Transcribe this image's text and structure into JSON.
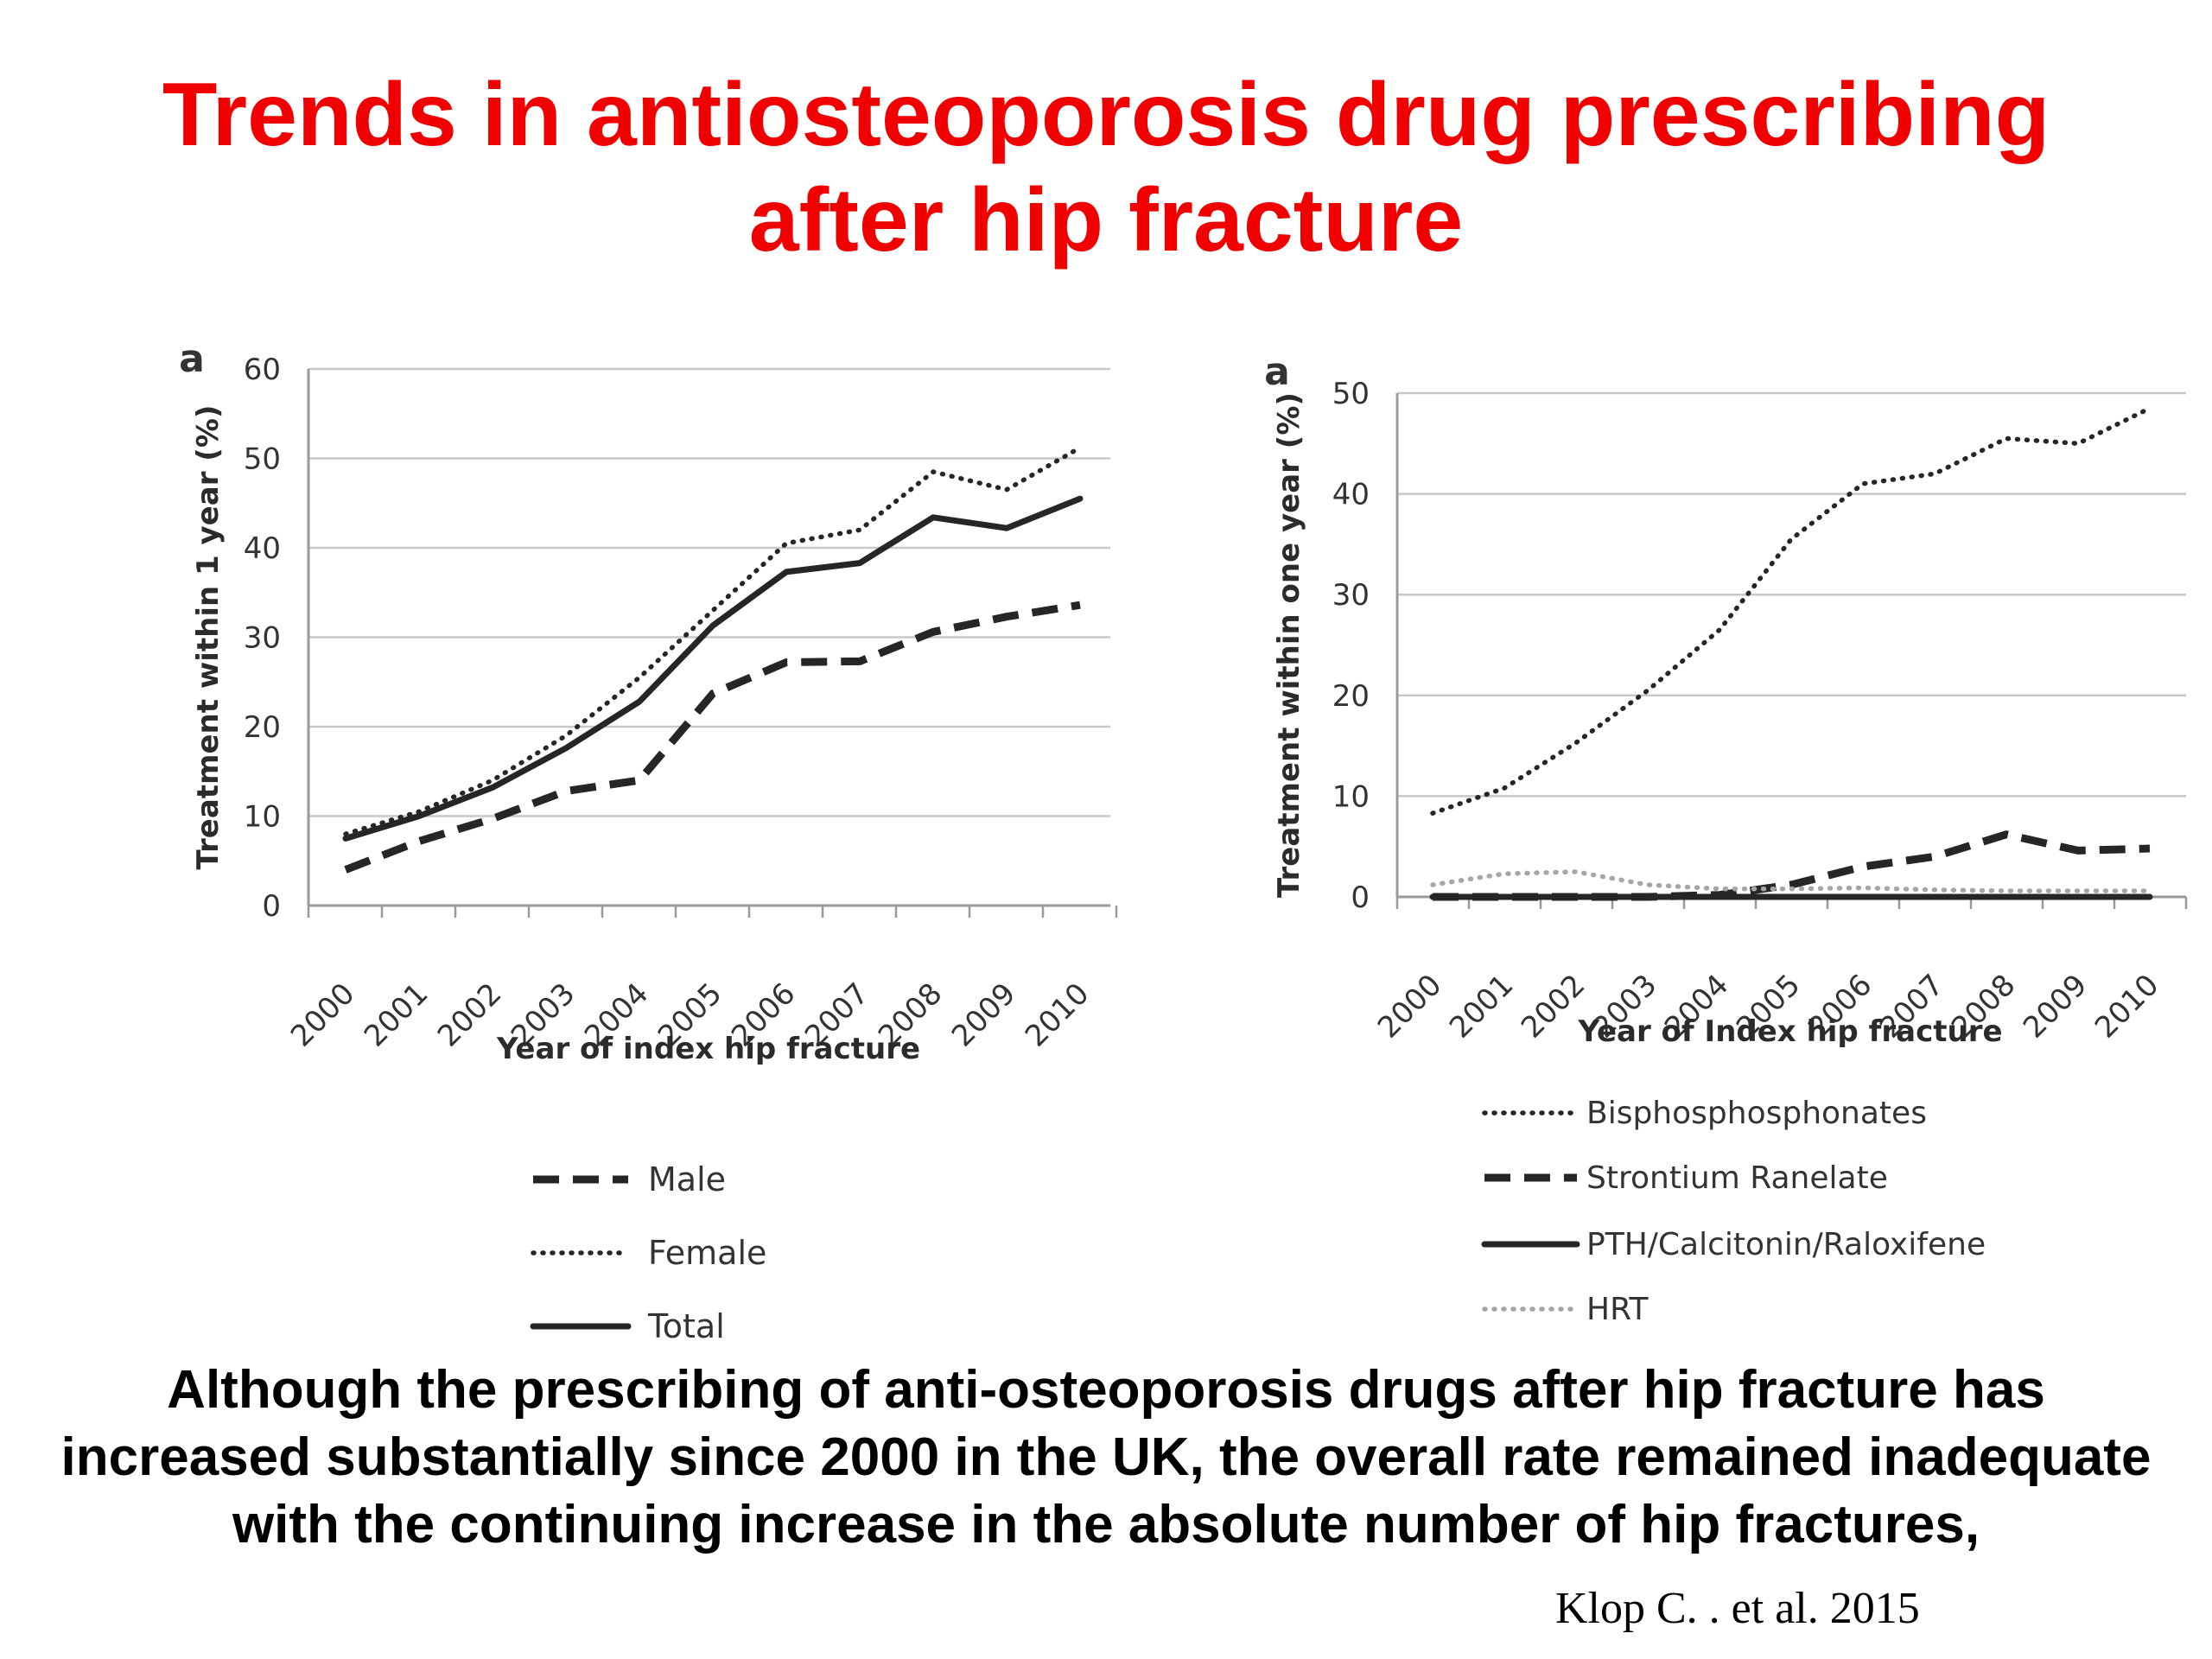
{
  "title": {
    "line1": "Trends in antiosteoporosis drug prescribing",
    "line2": "after hip fracture"
  },
  "chart_data": [
    {
      "type": "line",
      "panel_label": "a",
      "xlabel": "Year of index hip fracture",
      "ylabel": "Treatment within 1 year (%)",
      "x": [
        "2000",
        "2001",
        "2002",
        "2003",
        "2004",
        "2005",
        "2006",
        "2007",
        "2008",
        "2009",
        "2010"
      ],
      "ylim": [
        0,
        60
      ],
      "yticks": [
        0,
        10,
        20,
        30,
        40,
        50,
        60
      ],
      "grid": true,
      "legend_position": "bottom",
      "series": [
        {
          "name": "Male",
          "style": "dashed",
          "values": [
            4,
            7.2,
            9.7,
            12.8,
            14,
            23.7,
            27.2,
            27.3,
            30.6,
            32.3,
            33.6
          ]
        },
        {
          "name": "Female",
          "style": "dotted",
          "values": [
            8,
            10.5,
            14,
            19,
            25.5,
            33,
            40.5,
            42,
            48.5,
            46.5,
            51.2
          ]
        },
        {
          "name": "Total",
          "style": "solid",
          "values": [
            7.5,
            10,
            13.2,
            17.6,
            22.8,
            31.3,
            37.3,
            38.3,
            43.4,
            42.2,
            45.5
          ]
        }
      ]
    },
    {
      "type": "line",
      "panel_label": "a",
      "xlabel": "Year of Index hip fracture",
      "ylabel": "Treatment within one year (%)",
      "x": [
        "2000",
        "2001",
        "2002",
        "2003",
        "2004",
        "2005",
        "2006",
        "2007",
        "2008",
        "2009",
        "2010"
      ],
      "ylim": [
        0,
        50
      ],
      "yticks": [
        0,
        10,
        20,
        30,
        40,
        50
      ],
      "grid": true,
      "legend_position": "bottom",
      "series": [
        {
          "name": "Bisphosphosphonates",
          "style": "dotted",
          "values": [
            8.3,
            10.8,
            15.3,
            20.5,
            26.5,
            35.5,
            41,
            42,
            45.5,
            45,
            48.5
          ]
        },
        {
          "name": "Strontium Ranelate",
          "style": "dashed",
          "values": [
            0,
            0,
            0,
            0,
            0.2,
            1.2,
            3,
            4,
            6.2,
            4.6,
            4.8
          ]
        },
        {
          "name": "PTH/Calcitonin/Raloxifene",
          "style": "solid",
          "values": [
            0,
            0,
            0,
            0,
            0,
            0,
            0,
            0,
            0,
            0,
            0
          ]
        },
        {
          "name": "HRT",
          "style": "dotted-grey",
          "values": [
            1.2,
            2.3,
            2.5,
            1.2,
            0.8,
            0.8,
            0.9,
            0.7,
            0.6,
            0.6,
            0.6
          ]
        }
      ]
    }
  ],
  "body": {
    "line1": "Although the prescribing of anti-osteoporosis drugs after hip fracture has",
    "line2": "increased substantially since 2000 in the UK, the overall rate remained inadequate",
    "line3": "with the continuing increase in the absolute number of hip fractures,"
  },
  "citation": "Klop C. . et al. 2015",
  "colors": {
    "title": "#f00000",
    "gridline": "#c8c8c8",
    "series_dark": "#262626",
    "series_hrt": "#a6a6a6"
  }
}
